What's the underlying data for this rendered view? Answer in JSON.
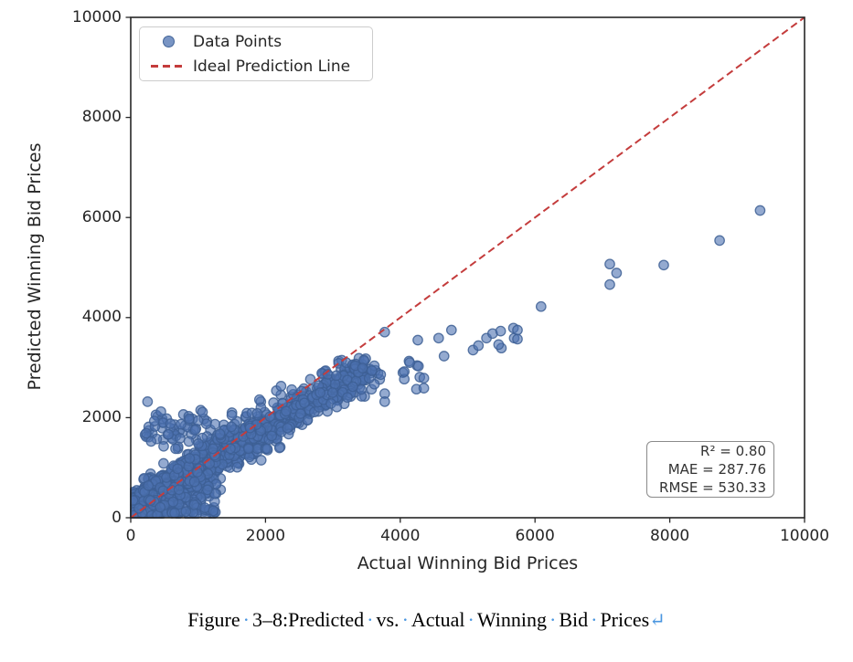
{
  "page": {
    "background": "#ffffff"
  },
  "chart_data": {
    "type": "scatter",
    "title": "",
    "xlabel": "Actual Winning Bid Prices",
    "ylabel": "Predicted Winning Bid Prices",
    "xlim": [
      0,
      10000
    ],
    "ylim": [
      0,
      10000
    ],
    "xticks": [
      0,
      2000,
      4000,
      6000,
      8000,
      10000
    ],
    "yticks": [
      0,
      2000,
      4000,
      6000,
      8000,
      10000
    ],
    "grid": false,
    "frame_color": "#262626",
    "legend": {
      "position": "upper-left",
      "entries": [
        {
          "label": "Data Points",
          "swatch": "circle-marker",
          "color": "#4C72B0"
        },
        {
          "label": "Ideal Prediction Line",
          "swatch": "dashed-line",
          "color": "#C43C3C"
        }
      ]
    },
    "ideal_line": {
      "x": [
        0,
        10000
      ],
      "y": [
        0,
        10000
      ],
      "style": "dashed",
      "color": "#C43C3C",
      "width": 2
    },
    "stats_box": {
      "position": "lower-right",
      "lines": [
        "R² = 0.80",
        "MAE = 287.76",
        "RMSE = 530.33"
      ]
    },
    "marker": {
      "shape": "circle",
      "radius": 5.2,
      "fill": "#4C72B0",
      "fill_opacity": 0.6,
      "edge": "#3D5F94",
      "edge_opacity": 0.85
    },
    "scatter": {
      "seed": 20240308,
      "summary": "Dense cloud of ~1500 points following y≈0.84x below the ideal line for x<3700, wide wedge near the origin, shoulder band near y≈1700, sparse points along y≈0.7x out to x≈9340",
      "clusters": [
        {
          "type": "trend",
          "n": 950,
          "x_min": 40,
          "x_max": 3490,
          "x_pow": 1.7,
          "slope": 0.84,
          "intercept": 100,
          "noise": 200,
          "y_min": 30
        },
        {
          "type": "wedge",
          "n": 430,
          "x_min": 30,
          "x_max": 1280,
          "x_pow": 1.2,
          "y_base": 40,
          "y_spread_base": 330,
          "y_spread_slope": 1.05,
          "y_cap": 1750
        },
        {
          "type": "band",
          "n": 110,
          "x_min": 200,
          "x_max": 2350,
          "y_center": 1700,
          "y_sigma": 200,
          "y_clip": [
            1380,
            2150
          ]
        },
        {
          "type": "trend",
          "n": 55,
          "x_min": 2750,
          "x_max": 3700,
          "x_pow": 1.0,
          "slope": 0.8,
          "intercept": 0,
          "noise": 170,
          "y_min": 30
        }
      ],
      "labeled_points": [
        [
          250,
          2320
        ],
        [
          590,
          1880
        ],
        [
          870,
          1980
        ],
        [
          1000,
          1940
        ],
        [
          1500,
          2050
        ],
        [
          1910,
          2360
        ],
        [
          2120,
          2300
        ],
        [
          2230,
          2630
        ],
        [
          2390,
          2560
        ],
        [
          2810,
          2500
        ],
        [
          3050,
          2840
        ],
        [
          3440,
          2990
        ],
        [
          3580,
          2940
        ],
        [
          3710,
          2860
        ],
        [
          3770,
          3710
        ],
        [
          3770,
          2480
        ],
        [
          3770,
          2320
        ],
        [
          4040,
          2900
        ],
        [
          4060,
          2770
        ],
        [
          4130,
          3130
        ],
        [
          4250,
          3040
        ],
        [
          4290,
          2810
        ],
        [
          4060,
          2920
        ],
        [
          4270,
          3030
        ],
        [
          4350,
          2790
        ],
        [
          4240,
          2570
        ],
        [
          4350,
          2590
        ],
        [
          4140,
          3100
        ],
        [
          4260,
          3550
        ],
        [
          4570,
          3590
        ],
        [
          4760,
          3750
        ],
        [
          4650,
          3230
        ],
        [
          5080,
          3350
        ],
        [
          5160,
          3440
        ],
        [
          5280,
          3590
        ],
        [
          5370,
          3680
        ],
        [
          5490,
          3730
        ],
        [
          5500,
          3390
        ],
        [
          5460,
          3460
        ],
        [
          5680,
          3790
        ],
        [
          5690,
          3590
        ],
        [
          5740,
          3750
        ],
        [
          5740,
          3570
        ],
        [
          6090,
          4220
        ],
        [
          7110,
          5070
        ],
        [
          7210,
          4890
        ],
        [
          7110,
          4660
        ],
        [
          7910,
          5050
        ],
        [
          8740,
          5540
        ],
        [
          9340,
          6140
        ]
      ]
    }
  },
  "figure": {
    "caption": {
      "words": [
        "Figure",
        "3–8:Predicted",
        "vs.",
        "Actual",
        "Winning",
        "Bid",
        "Prices"
      ],
      "separator": "·",
      "return_mark": "↵",
      "text_color": "#000000",
      "marks_color": "#4a96e0"
    }
  }
}
